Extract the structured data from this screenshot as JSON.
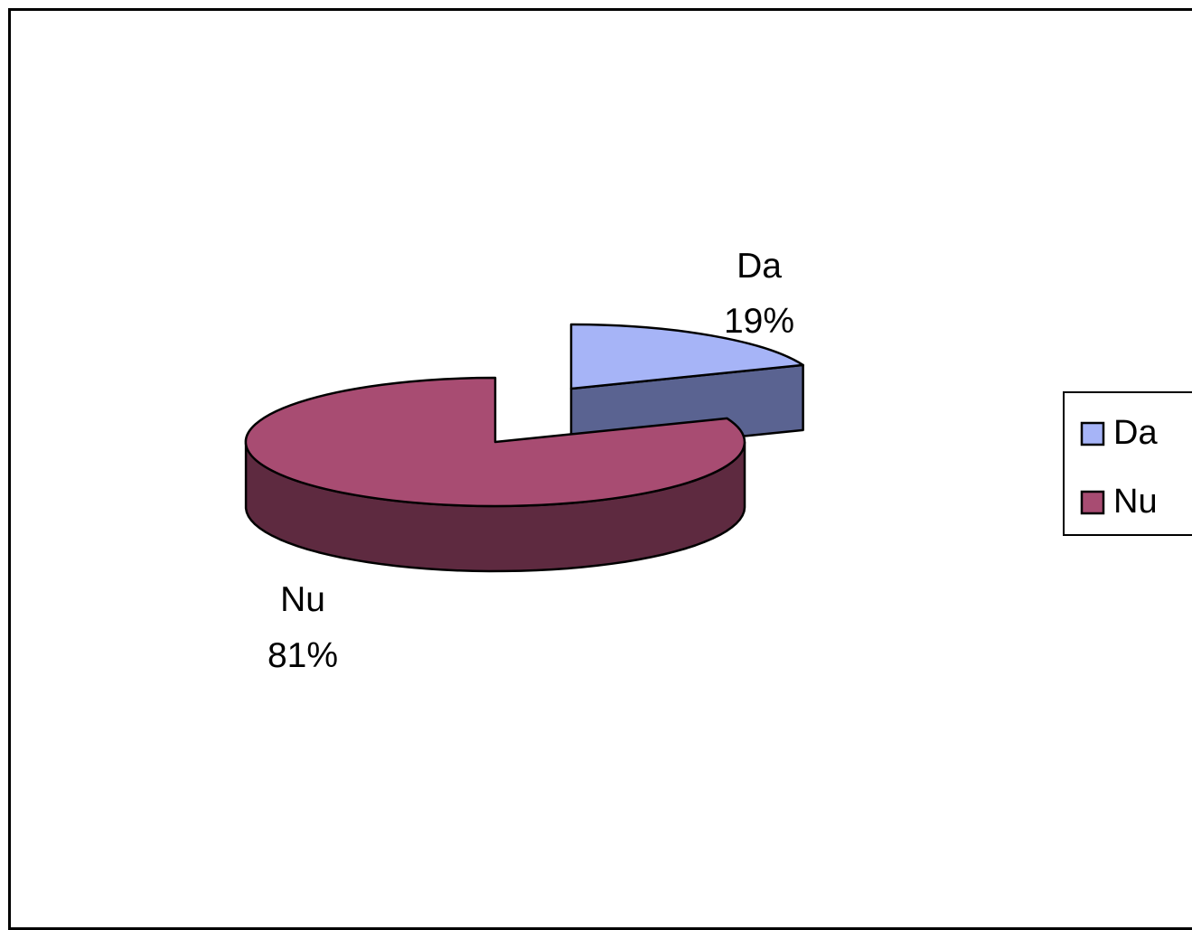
{
  "chart_data": {
    "type": "pie",
    "style": "3d-exploded",
    "title": "",
    "slices": [
      {
        "name": "Da",
        "value": 19,
        "label_pct": "19%",
        "color": "#a6b4f7",
        "side_color": "#5a6391"
      },
      {
        "name": "Nu",
        "value": 81,
        "label_pct": "81%",
        "color": "#a84c72",
        "side_color": "#5e2a40"
      }
    ],
    "legend": {
      "position": "right",
      "items": [
        {
          "name": "Da",
          "color": "#a6b4f7"
        },
        {
          "name": "Nu",
          "color": "#a84c72"
        }
      ]
    }
  }
}
